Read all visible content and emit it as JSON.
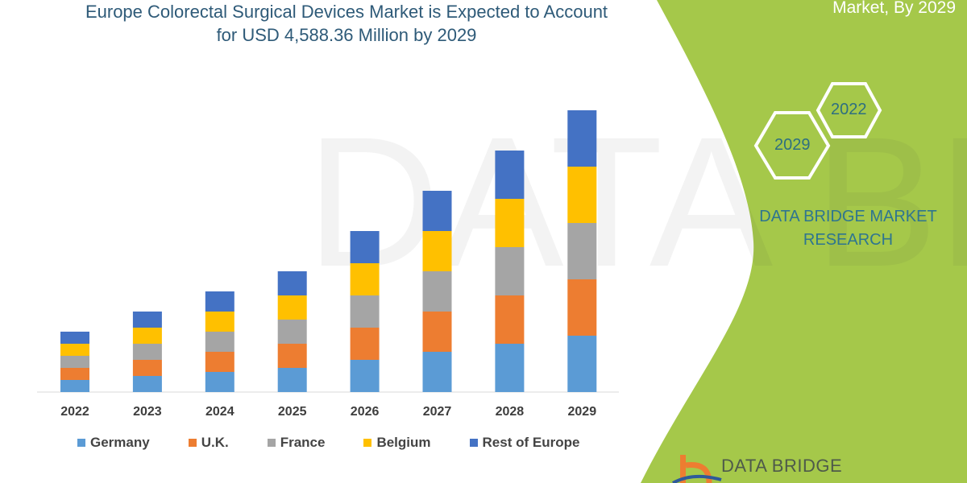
{
  "header": {
    "title_line1": "Europe Colorectal Surgical Devices Market is Expected to Account",
    "title_line2": "for USD 4,588.36 Million by 2029",
    "right_title": "Market, By 2029"
  },
  "side_panel": {
    "hex_start": "2022",
    "hex_end": "2029",
    "brand_line1": "DATA BRIDGE MARKET",
    "brand_line2": "RESEARCH",
    "logo_text": "DATA BRIDGE",
    "panel_color": "#a5c84a"
  },
  "chart_data": {
    "type": "bar",
    "stacked": true,
    "categories": [
      "2022",
      "2023",
      "2024",
      "2025",
      "2026",
      "2027",
      "2028",
      "2029"
    ],
    "series": [
      {
        "name": "Germany",
        "color": "#5b9bd5",
        "values": [
          15,
          20,
          25,
          30,
          40,
          50,
          60,
          70
        ]
      },
      {
        "name": "U.K.",
        "color": "#ed7d31",
        "values": [
          15,
          20,
          25,
          30,
          40,
          50,
          60,
          70
        ]
      },
      {
        "name": "France",
        "color": "#a5a5a5",
        "values": [
          15,
          20,
          25,
          30,
          40,
          50,
          60,
          70
        ]
      },
      {
        "name": "Belgium",
        "color": "#ffc000",
        "values": [
          15,
          20,
          25,
          30,
          40,
          50,
          60,
          70
        ]
      },
      {
        "name": "Rest of Europe",
        "color": "#4472c4",
        "values": [
          15,
          20,
          25,
          30,
          40,
          50,
          60,
          70
        ]
      }
    ],
    "ylim": [
      0,
      352
    ],
    "grid": false,
    "legend_position": "bottom",
    "value_axis_shown": false
  }
}
